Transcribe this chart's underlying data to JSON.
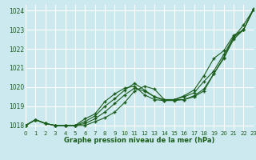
{
  "xlabel": "Graphe pression niveau de la mer (hPa)",
  "bg_color": "#cce9f0",
  "grid_color": "#ffffff",
  "line_color": "#1a5c1a",
  "xlim": [
    0,
    23
  ],
  "ylim": [
    1017.7,
    1024.3
  ],
  "yticks": [
    1018,
    1019,
    1020,
    1021,
    1022,
    1023,
    1024
  ],
  "xticks": [
    0,
    1,
    2,
    3,
    4,
    5,
    6,
    7,
    8,
    9,
    10,
    11,
    12,
    13,
    14,
    15,
    16,
    17,
    18,
    19,
    20,
    21,
    22,
    23
  ],
  "lines": [
    [
      1018.0,
      1018.3,
      1018.1,
      1018.0,
      1018.0,
      1018.0,
      1018.0,
      1018.2,
      1018.4,
      1018.7,
      1019.2,
      1019.8,
      1020.05,
      1019.9,
      1019.35,
      1019.35,
      1019.35,
      1019.5,
      1019.8,
      1020.7,
      1021.55,
      1022.6,
      1023.25,
      1024.05
    ],
    [
      1018.0,
      1018.3,
      1018.1,
      1018.0,
      1018.0,
      1018.0,
      1018.1,
      1018.35,
      1018.7,
      1019.15,
      1019.6,
      1019.95,
      1019.8,
      1019.5,
      1019.3,
      1019.3,
      1019.35,
      1019.55,
      1019.9,
      1020.7,
      1021.5,
      1022.5,
      1023.0,
      1024.05
    ],
    [
      1018.0,
      1018.3,
      1018.1,
      1018.0,
      1018.0,
      1018.0,
      1018.2,
      1018.5,
      1019.0,
      1019.4,
      1019.85,
      1020.2,
      1019.85,
      1019.5,
      1019.35,
      1019.35,
      1019.5,
      1019.7,
      1020.3,
      1020.85,
      1021.7,
      1022.6,
      1023.0,
      1024.05
    ],
    [
      1018.0,
      1018.3,
      1018.1,
      1018.0,
      1018.0,
      1018.0,
      1018.35,
      1018.6,
      1019.25,
      1019.65,
      1019.95,
      1020.05,
      1019.6,
      1019.35,
      1019.3,
      1019.35,
      1019.55,
      1019.85,
      1020.6,
      1021.5,
      1021.9,
      1022.7,
      1023.0,
      1024.1
    ]
  ]
}
